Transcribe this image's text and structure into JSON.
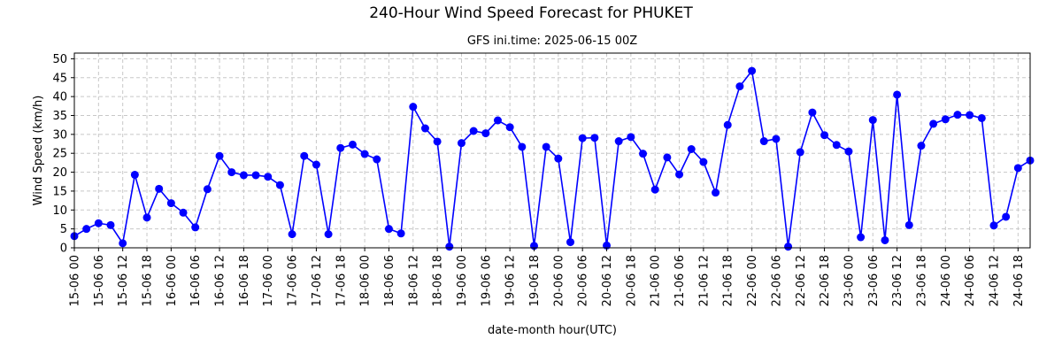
{
  "chart_data": {
    "type": "line",
    "title": "240-Hour Wind Speed Forecast for PHUKET",
    "subtitle": "GFS ini.time: 2025-06-15 00Z",
    "xlabel": "date-month hour(UTC)",
    "ylabel": "Wind Speed (km/h)",
    "ylim": [
      0,
      51.5
    ],
    "yticks": [
      0,
      5,
      10,
      15,
      20,
      25,
      30,
      35,
      40,
      45,
      50
    ],
    "x_start": "2025-06-15 00Z",
    "x_step_hours": 3,
    "xticks": [
      "15-06 00",
      "15-06 06",
      "15-06 12",
      "15-06 18",
      "16-06 00",
      "16-06 06",
      "16-06 12",
      "16-06 18",
      "17-06 00",
      "17-06 06",
      "17-06 12",
      "17-06 18",
      "18-06 00",
      "18-06 06",
      "18-06 12",
      "18-06 18",
      "19-06 00",
      "19-06 06",
      "19-06 12",
      "19-06 18",
      "20-06 00",
      "20-06 06",
      "20-06 12",
      "20-06 18",
      "21-06 00",
      "21-06 06",
      "21-06 12",
      "21-06 18",
      "22-06 00",
      "22-06 06",
      "22-06 12",
      "22-06 18",
      "23-06 00",
      "23-06 06",
      "23-06 12",
      "23-06 18",
      "24-06 00",
      "24-06 06",
      "24-06 12",
      "24-06 18"
    ],
    "grid": true,
    "line_color": "#0000ff",
    "values": [
      3.1,
      5.0,
      6.5,
      6.0,
      1.2,
      19.3,
      8.0,
      15.6,
      11.8,
      9.3,
      5.4,
      15.5,
      24.3,
      20.0,
      19.2,
      19.2,
      18.8,
      16.6,
      3.6,
      24.3,
      22.0,
      3.6,
      26.4,
      27.3,
      24.8,
      23.4,
      5.0,
      3.8,
      37.3,
      31.6,
      28.1,
      0.3,
      27.7,
      30.9,
      30.3,
      33.7,
      31.9,
      26.7,
      0.5,
      26.7,
      23.6,
      1.5,
      29.0,
      29.1,
      0.6,
      28.2,
      29.3,
      24.9,
      15.4,
      23.9,
      19.4,
      26.1,
      22.7,
      14.6,
      32.5,
      42.7,
      46.8,
      28.2,
      28.8,
      0.3,
      25.3,
      35.8,
      29.8,
      27.2,
      25.5,
      2.8,
      33.8,
      2.0,
      40.5,
      6.0,
      27.0,
      32.8,
      34.0,
      35.2,
      35.1,
      34.3,
      5.9,
      8.2,
      21.1,
      23.1
    ]
  }
}
